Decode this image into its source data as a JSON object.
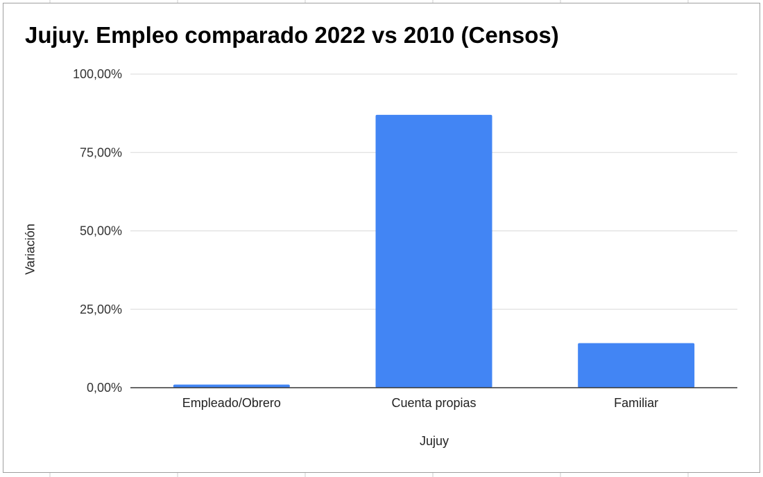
{
  "chart_data": {
    "type": "bar",
    "title": "Jujuy. Empleo comparado 2022 vs 2010 (Censos)",
    "xlabel": "Jujuy",
    "ylabel": "Variación",
    "categories": [
      "Empleado/Obrero",
      "Cuenta propias",
      "Familiar"
    ],
    "values": [
      1.0,
      87.0,
      14.2
    ],
    "ylim": [
      0,
      100
    ],
    "yticks": [
      "0,00%",
      "25,00%",
      "50,00%",
      "75,00%",
      "100,00%"
    ],
    "ytick_values": [
      0,
      25,
      50,
      75,
      100
    ],
    "grid": true,
    "legend": "none",
    "bar_color": "#4285f4",
    "grid_color": "#d9d9d9",
    "axis_color": "#333333"
  }
}
